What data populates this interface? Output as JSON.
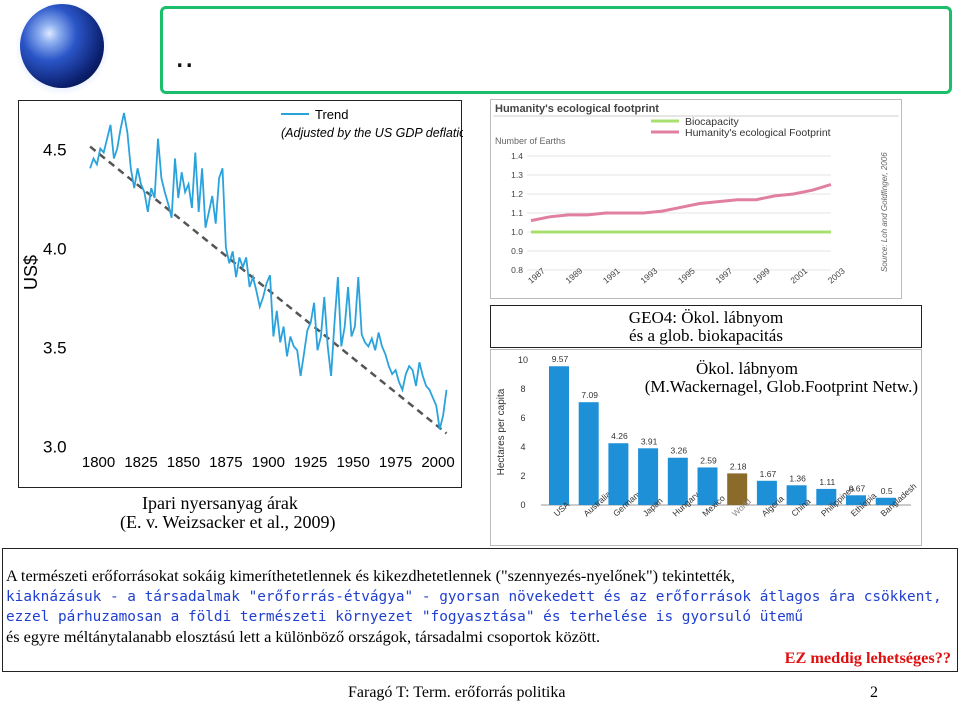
{
  "slide": {
    "title_text": "..",
    "footer_text": "Faragó T: Term. erőforrás politika",
    "page_number": "2"
  },
  "colors": {
    "title_border": "#1bbf6b",
    "trend_line": "#2aa3dc",
    "bar_blue": "#1e90d8",
    "bar_world": "#8b6b2a",
    "biocapacity": "#a8e070",
    "footprint": "#e07fa0",
    "blue_text": "#1f3fd0",
    "red_text": "#e01010"
  },
  "captions": {
    "price_caption_line1": "Ipari nyersanyag árak",
    "price_caption_line2": "(E. v. Weizsacker et al., 2009)",
    "geo4_line1": "GEO4: Ökol. lábnyom",
    "geo4_line2": "és a glob. biokapacitás",
    "footprint_line1": "Ökol. lábnyom",
    "footprint_line2": "(M.Wackernagel, Glob.Footprint Netw.)"
  },
  "text_block": {
    "line1": "A természeti erőforrásokat sokáig kimeríthetetlennek és kikezdhetetlennek (\"szennyezés-nyelőnek\") tekintették,",
    "line2": "kiaknázásuk - a társadalmak \"erőforrás-étvágya\" - gyorsan növekedett és az erőforrások átlagos ára csökkent,",
    "line3": "ezzel párhuzamosan a földi természeti környezet \"fogyasztása\" és terhelése is gyorsuló ütemű",
    "line4": "és egyre méltánytalanabb elosztású lett a különböző országok, társadalmi csoportok között.",
    "line5": "EZ meddig lehetséges??"
  },
  "chart_data": [
    {
      "type": "line",
      "title": "",
      "ylabel": "US$",
      "legend": [
        "Trend",
        "(Adjusted by the  US GDP deflation)"
      ],
      "x_ticks": [
        "1800",
        "1825",
        "1850",
        "1875",
        "1900",
        "1925",
        "1950",
        "1975",
        "2000"
      ],
      "y_ticks": [
        "4.5",
        "4.0",
        "3.5",
        "3.0"
      ],
      "xlim": [
        1792,
        2010
      ],
      "ylim": [
        2.88,
        4.7
      ],
      "trend": [
        [
          1795,
          4.51
        ],
        [
          2005,
          3.06
        ]
      ],
      "series": [
        {
          "x": [
            1795,
            1797,
            1799,
            1801,
            1803,
            1805,
            1807,
            1809,
            1811,
            1813,
            1815,
            1817,
            1819,
            1821,
            1823,
            1825,
            1827,
            1829,
            1831,
            1833,
            1835,
            1837,
            1839,
            1841,
            1843,
            1845,
            1847,
            1849,
            1851,
            1853,
            1855,
            1857,
            1859,
            1861,
            1863,
            1865,
            1867,
            1869,
            1871,
            1873,
            1875,
            1877,
            1879,
            1881,
            1883,
            1885,
            1887,
            1889,
            1891,
            1893,
            1895,
            1897,
            1899,
            1901,
            1903,
            1905,
            1907,
            1909,
            1911,
            1913,
            1915,
            1917,
            1919,
            1921,
            1923,
            1925,
            1927,
            1929,
            1931,
            1933,
            1935,
            1937,
            1939,
            1941,
            1943,
            1945,
            1947,
            1949,
            1951,
            1953,
            1955,
            1957,
            1959,
            1961,
            1963,
            1965,
            1967,
            1969,
            1971,
            1973,
            1975,
            1977,
            1979,
            1981,
            1983,
            1985,
            1987,
            1989,
            1991,
            1993,
            1995,
            1997,
            1999,
            2001,
            2003,
            2005
          ],
          "y": [
            4.4,
            4.45,
            4.42,
            4.5,
            4.48,
            4.55,
            4.62,
            4.45,
            4.5,
            4.6,
            4.68,
            4.58,
            4.4,
            4.3,
            4.4,
            4.32,
            4.28,
            4.18,
            4.3,
            4.25,
            4.55,
            4.35,
            4.28,
            4.22,
            4.15,
            4.45,
            4.25,
            4.38,
            4.28,
            4.32,
            4.2,
            4.48,
            4.18,
            4.4,
            4.1,
            4.18,
            4.26,
            4.12,
            4.35,
            4.4,
            4.0,
            3.92,
            3.98,
            3.85,
            3.95,
            3.9,
            3.95,
            3.8,
            3.85,
            3.78,
            3.7,
            3.75,
            3.82,
            3.86,
            3.55,
            3.68,
            3.52,
            3.6,
            3.45,
            3.55,
            3.5,
            3.48,
            3.35,
            3.46,
            3.58,
            3.62,
            3.72,
            3.48,
            3.55,
            3.75,
            3.5,
            3.35,
            3.62,
            3.85,
            3.5,
            3.6,
            3.8,
            3.55,
            3.6,
            3.85,
            3.56,
            3.52,
            3.5,
            3.54,
            3.48,
            3.57,
            3.5,
            3.46,
            3.4,
            3.36,
            3.38,
            3.32,
            3.28,
            3.36,
            3.4,
            3.38,
            3.3,
            3.42,
            3.35,
            3.3,
            3.28,
            3.24,
            3.2,
            3.08,
            3.15,
            3.28
          ]
        }
      ]
    },
    {
      "type": "line",
      "title": "Humanity's ecological footprint",
      "ylabel": "Number of Earths",
      "x_ticks": [
        "1987",
        "1989",
        "1991",
        "1993",
        "1995",
        "1997",
        "1999",
        "2001",
        "2003"
      ],
      "y_ticks": [
        "1.4",
        "1.3",
        "1.2",
        "1.1",
        "1.0",
        "0.9",
        "0.8"
      ],
      "xlim": [
        1987,
        2003
      ],
      "ylim": [
        0.8,
        1.4
      ],
      "source": "Source: Loh and Goldfinger, 2006",
      "series": [
        {
          "name": "Biocapacity",
          "x": [
            1987,
            2003
          ],
          "y": [
            1.0,
            1.0
          ]
        },
        {
          "name": "Humanity's ecological Footprint",
          "x": [
            1987,
            1988,
            1989,
            1990,
            1991,
            1992,
            1993,
            1994,
            1995,
            1996,
            1997,
            1998,
            1999,
            2000,
            2001,
            2002,
            2003
          ],
          "y": [
            1.06,
            1.08,
            1.09,
            1.09,
            1.1,
            1.1,
            1.1,
            1.11,
            1.13,
            1.15,
            1.16,
            1.17,
            1.17,
            1.19,
            1.2,
            1.22,
            1.25
          ]
        }
      ]
    },
    {
      "type": "bar",
      "title": "",
      "ylabel": "Hectares per capita",
      "y_ticks": [
        "0",
        "2",
        "4",
        "6",
        "8",
        "10"
      ],
      "ylim": [
        0,
        10
      ],
      "categories": [
        "USA",
        "Australia",
        "Germany",
        "Japan",
        "Hungary",
        "Mexico",
        "World",
        "Algeria",
        "China",
        "Philippines",
        "Ethiopia",
        "Bangladesh"
      ],
      "values": [
        9.57,
        7.09,
        4.26,
        3.91,
        3.26,
        2.59,
        2.18,
        1.67,
        1.36,
        1.11,
        0.67,
        0.5
      ],
      "labels": [
        "9.57",
        "7.09",
        "4.26",
        "3.91",
        "3.26",
        "2.59",
        "2.18",
        "1.67",
        "1.36",
        "1.11",
        "0.67",
        "0.5"
      ]
    }
  ]
}
